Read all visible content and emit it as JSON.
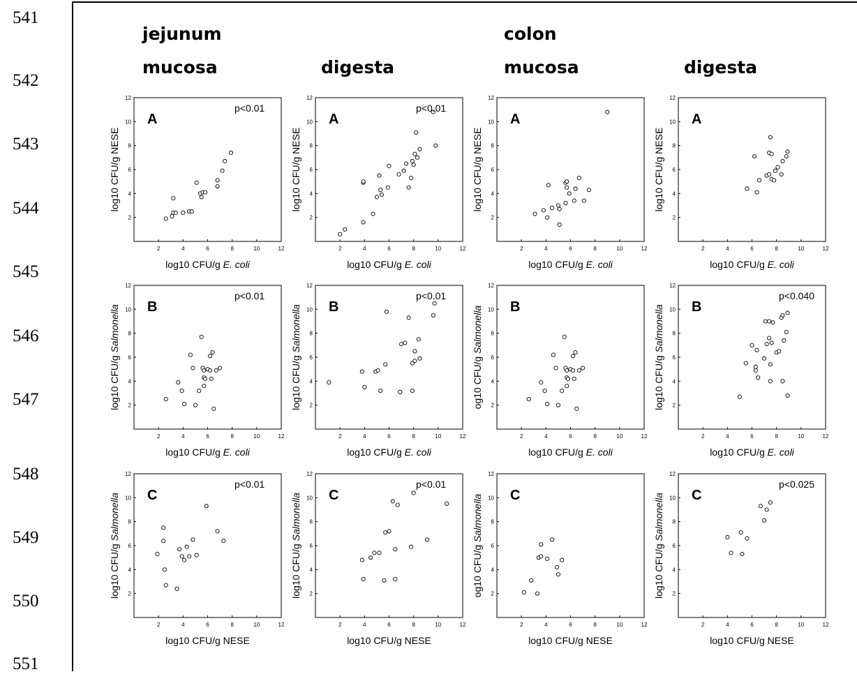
{
  "line_numbers": [
    "541",
    "542",
    "543",
    "544",
    "545",
    "546",
    "547",
    "548",
    "549",
    "550",
    "551"
  ],
  "headers": {
    "jejunum": "jejunum",
    "colon": "colon",
    "jej_mucosa": "mucosa",
    "jej_digesta": "digesta",
    "col_mucosa": "mucosa",
    "col_digesta": "digesta"
  },
  "chart_data": [
    {
      "type": "scatter",
      "panel": "jejunum mucosa",
      "letter": "A",
      "pvalue": "p<0.01",
      "xlabel": "log10 CFU/g",
      "xlabel_italic": "E. coli",
      "ylabel": "log10 CFU/g NESE",
      "ylabel_italic": "",
      "xlim": [
        0,
        12
      ],
      "ylim": [
        0,
        12
      ],
      "ticks": [
        2,
        4,
        6,
        8,
        10,
        12
      ],
      "points": [
        [
          2.6,
          1.9
        ],
        [
          3.1,
          2.1
        ],
        [
          3.2,
          2.4
        ],
        [
          3.4,
          2.4
        ],
        [
          3.2,
          3.6
        ],
        [
          4,
          2.4
        ],
        [
          4.5,
          2.5
        ],
        [
          4.7,
          2.5
        ],
        [
          5.1,
          4.9
        ],
        [
          5.4,
          4
        ],
        [
          5.5,
          3.7
        ],
        [
          5.6,
          4.1
        ],
        [
          5.8,
          4.1
        ],
        [
          6.8,
          4.6
        ],
        [
          6.8,
          5.1
        ],
        [
          7.2,
          5.9
        ],
        [
          7.4,
          6.7
        ],
        [
          7.9,
          7.4
        ]
      ]
    },
    {
      "type": "scatter",
      "panel": "jejunum digesta",
      "letter": "A",
      "pvalue": "p<0.01",
      "xlabel": "log10 CFU/g",
      "xlabel_italic": "E. coli",
      "ylabel": "log10 CFU/g NESE",
      "ylabel_italic": "",
      "xlim": [
        0,
        12
      ],
      "ylim": [
        0,
        12
      ],
      "ticks": [
        2,
        4,
        6,
        8,
        10,
        12
      ],
      "points": [
        [
          2,
          0.6
        ],
        [
          2.4,
          1
        ],
        [
          3.9,
          1.6
        ],
        [
          3.9,
          4.9
        ],
        [
          3.9,
          5
        ],
        [
          4.7,
          2.3
        ],
        [
          5,
          3.7
        ],
        [
          5.2,
          5.5
        ],
        [
          5.4,
          3.9
        ],
        [
          5.3,
          4.3
        ],
        [
          5.9,
          4.5
        ],
        [
          6,
          6.3
        ],
        [
          6.8,
          5.6
        ],
        [
          7.2,
          5.9
        ],
        [
          7.4,
          6.5
        ],
        [
          7.6,
          4.5
        ],
        [
          7.8,
          5.3
        ],
        [
          7.9,
          6.7
        ],
        [
          8,
          6.4
        ],
        [
          8.1,
          7.3
        ],
        [
          8.2,
          9.1
        ],
        [
          8.3,
          7
        ],
        [
          8.5,
          7.7
        ],
        [
          9.6,
          10.8
        ],
        [
          9.8,
          8
        ]
      ]
    },
    {
      "type": "scatter",
      "panel": "colon mucosa",
      "letter": "A",
      "pvalue": "",
      "xlabel": "log10 CFU/g",
      "xlabel_italic": "E. coli",
      "ylabel": "log10 CFU/g NESE",
      "ylabel_italic": "",
      "xlim": [
        0,
        12
      ],
      "ylim": [
        0,
        12
      ],
      "ticks": [
        2,
        4,
        6,
        8,
        10,
        12
      ],
      "points": [
        [
          3.1,
          2.3
        ],
        [
          3.8,
          2.6
        ],
        [
          4.1,
          2
        ],
        [
          4.2,
          4.7
        ],
        [
          4.5,
          2.8
        ],
        [
          5,
          3
        ],
        [
          5.1,
          1.4
        ],
        [
          5.1,
          2.7
        ],
        [
          5.6,
          4.9
        ],
        [
          5.7,
          4.5
        ],
        [
          5.6,
          3.2
        ],
        [
          5.9,
          4
        ],
        [
          5.7,
          5
        ],
        [
          6.3,
          3.4
        ],
        [
          6.4,
          4.4
        ],
        [
          6.7,
          5.3
        ],
        [
          7.1,
          3.4
        ],
        [
          7.5,
          4.3
        ],
        [
          9,
          10.8
        ]
      ]
    },
    {
      "type": "scatter",
      "panel": "colon digesta",
      "letter": "A",
      "pvalue": "",
      "xlabel": "log10 CFU/g",
      "xlabel_italic": "E. coli",
      "ylabel": "log10 CFU/g NESE",
      "ylabel_italic": "",
      "xlim": [
        0,
        12
      ],
      "ylim": [
        0,
        12
      ],
      "ticks": [
        2,
        4,
        6,
        8,
        10,
        12
      ],
      "points": [
        [
          5.6,
          4.4
        ],
        [
          6.2,
          7.1
        ],
        [
          6.4,
          4.1
        ],
        [
          6.6,
          5.1
        ],
        [
          7.2,
          5.5
        ],
        [
          7.4,
          5.6
        ],
        [
          7.4,
          7.4
        ],
        [
          7.5,
          8.7
        ],
        [
          7.6,
          7.3
        ],
        [
          7.6,
          5.2
        ],
        [
          7.8,
          5.1
        ],
        [
          7.9,
          5.9
        ],
        [
          8.1,
          6.2
        ],
        [
          8.4,
          5.6
        ],
        [
          8.5,
          6.7
        ],
        [
          8.8,
          7.1
        ],
        [
          8.9,
          7.5
        ]
      ]
    },
    {
      "type": "scatter",
      "panel": "jejunum mucosa",
      "letter": "B",
      "pvalue": "p<0.01",
      "xlabel": "log10 CFU/g",
      "xlabel_italic": "E. coli",
      "ylabel": "log10 CFU/g",
      "ylabel_italic": "Salmonella",
      "xlim": [
        0,
        12
      ],
      "ylim": [
        0,
        12
      ],
      "ticks": [
        2,
        4,
        6,
        8,
        10,
        12
      ],
      "points": [
        [
          2.6,
          2.5
        ],
        [
          3.6,
          3.9
        ],
        [
          3.9,
          3.2
        ],
        [
          4.1,
          2.1
        ],
        [
          4.6,
          6.2
        ],
        [
          4.8,
          5.1
        ],
        [
          5,
          2
        ],
        [
          5.3,
          3.2
        ],
        [
          5.5,
          7.7
        ],
        [
          5.6,
          5.1
        ],
        [
          5.7,
          4.9
        ],
        [
          5.7,
          4.3
        ],
        [
          5.7,
          3.6
        ],
        [
          5.8,
          4.2
        ],
        [
          6,
          5
        ],
        [
          6.2,
          6.1
        ],
        [
          6.2,
          4.9
        ],
        [
          6.4,
          6.4
        ],
        [
          6.3,
          4.2
        ],
        [
          6.5,
          1.7
        ],
        [
          6.7,
          4.9
        ],
        [
          7,
          5.1
        ]
      ]
    },
    {
      "type": "scatter",
      "panel": "jejunum digesta",
      "letter": "B",
      "pvalue": "p<0.01",
      "xlabel": "log10 CFU/g",
      "xlabel_italic": "E. coli",
      "ylabel": "log10 CFU/g",
      "ylabel_italic": "Salmonella",
      "xlim": [
        0,
        12
      ],
      "ylim": [
        0,
        12
      ],
      "ticks": [
        2,
        4,
        6,
        8,
        10,
        12
      ],
      "points": [
        [
          1.1,
          3.9
        ],
        [
          3.8,
          4.8
        ],
        [
          4,
          3.5
        ],
        [
          4.9,
          4.8
        ],
        [
          5.1,
          4.9
        ],
        [
          5.3,
          3.2
        ],
        [
          5.7,
          5.4
        ],
        [
          5.8,
          9.8
        ],
        [
          6.9,
          3.1
        ],
        [
          7,
          7.1
        ],
        [
          7.3,
          7.2
        ],
        [
          7.6,
          9.3
        ],
        [
          7.9,
          5.5
        ],
        [
          7.9,
          3.2
        ],
        [
          8.1,
          6.5
        ],
        [
          8.1,
          5.7
        ],
        [
          8.4,
          7.5
        ],
        [
          8.5,
          5.9
        ],
        [
          9.6,
          9.5
        ],
        [
          9.7,
          10.5
        ]
      ]
    },
    {
      "type": "scatter",
      "panel": "colon mucosa",
      "letter": "B",
      "pvalue": "",
      "xlabel": "log10 CFU/g",
      "xlabel_italic": "E. coli",
      "ylabel": "og10 CFU/g",
      "ylabel_italic": "Salmonella",
      "xlim": [
        0,
        12
      ],
      "ylim": [
        0,
        12
      ],
      "ticks": [
        2,
        4,
        6,
        8,
        10,
        12
      ],
      "points": [
        [
          2.6,
          2.5
        ],
        [
          3.6,
          3.9
        ],
        [
          3.9,
          3.2
        ],
        [
          4.1,
          2.1
        ],
        [
          4.6,
          6.2
        ],
        [
          4.8,
          5.1
        ],
        [
          5,
          2
        ],
        [
          5.3,
          3.2
        ],
        [
          5.5,
          7.7
        ],
        [
          5.6,
          5.1
        ],
        [
          5.7,
          4.9
        ],
        [
          5.7,
          4.3
        ],
        [
          5.7,
          3.6
        ],
        [
          5.8,
          4.2
        ],
        [
          6,
          5
        ],
        [
          6.2,
          6.1
        ],
        [
          6.2,
          4.9
        ],
        [
          6.4,
          6.4
        ],
        [
          6.3,
          4.2
        ],
        [
          6.5,
          1.7
        ],
        [
          6.7,
          4.9
        ],
        [
          7,
          5.1
        ]
      ]
    },
    {
      "type": "scatter",
      "panel": "colon digesta",
      "letter": "B",
      "pvalue": "p<0.040",
      "xlabel": "log10 CFU/g",
      "xlabel_italic": "E. coli",
      "ylabel": "log10 CFU/g",
      "ylabel_italic": "Salmonella",
      "xlim": [
        0,
        12
      ],
      "ylim": [
        0,
        12
      ],
      "ticks": [
        2,
        4,
        6,
        8,
        10,
        12
      ],
      "points": [
        [
          5,
          2.7
        ],
        [
          5.5,
          5.5
        ],
        [
          6,
          7
        ],
        [
          6.3,
          5.2
        ],
        [
          6.3,
          4.9
        ],
        [
          6.4,
          6.6
        ],
        [
          6.5,
          4.3
        ],
        [
          7,
          5.9
        ],
        [
          7.1,
          9
        ],
        [
          7.2,
          7.1
        ],
        [
          7.4,
          7.6
        ],
        [
          7.4,
          9
        ],
        [
          7.5,
          5.4
        ],
        [
          7.5,
          4
        ],
        [
          7.6,
          7.2
        ],
        [
          7.7,
          8.9
        ],
        [
          8,
          6.4
        ],
        [
          8.2,
          6.5
        ],
        [
          8.4,
          9.3
        ],
        [
          8.5,
          4
        ],
        [
          8.5,
          9.5
        ],
        [
          8.6,
          7.4
        ],
        [
          8.8,
          8.1
        ],
        [
          8.9,
          9.7
        ],
        [
          8.9,
          2.8
        ]
      ]
    },
    {
      "type": "scatter",
      "panel": "jejunum mucosa",
      "letter": "C",
      "pvalue": "p<0.01",
      "xlabel": "log10 CFU/g NESE",
      "xlabel_italic": "",
      "ylabel": "log10 CFU/g",
      "ylabel_italic": "Salmonella",
      "xlim": [
        0,
        12
      ],
      "ylim": [
        0,
        12
      ],
      "ticks": [
        2,
        4,
        6,
        8,
        10,
        12
      ],
      "points": [
        [
          1.9,
          5.3
        ],
        [
          2.4,
          7.5
        ],
        [
          2.4,
          6.4
        ],
        [
          2.5,
          4
        ],
        [
          2.6,
          2.7
        ],
        [
          3.5,
          2.4
        ],
        [
          3.7,
          5.7
        ],
        [
          3.9,
          5.1
        ],
        [
          4.1,
          4.8
        ],
        [
          4.3,
          5.9
        ],
        [
          4.5,
          5.1
        ],
        [
          4.8,
          6.5
        ],
        [
          5.1,
          5.2
        ],
        [
          5.9,
          9.3
        ],
        [
          6.8,
          7.2
        ],
        [
          7.3,
          6.4
        ]
      ]
    },
    {
      "type": "scatter",
      "panel": "jejunum digesta",
      "letter": "C",
      "pvalue": "p<0.01",
      "xlabel": "log10 CFU/g NESE",
      "xlabel_italic": "",
      "ylabel": "log10 CFU/g",
      "ylabel_italic": "Salmonella",
      "xlim": [
        0,
        12
      ],
      "ylim": [
        0,
        12
      ],
      "ticks": [
        2,
        4,
        6,
        8,
        10,
        12
      ],
      "points": [
        [
          3.8,
          4.8
        ],
        [
          3.9,
          3.2
        ],
        [
          4.5,
          5
        ],
        [
          4.8,
          5.4
        ],
        [
          5.2,
          5.4
        ],
        [
          5.6,
          3.1
        ],
        [
          5.7,
          7.1
        ],
        [
          6,
          7.2
        ],
        [
          6.3,
          9.7
        ],
        [
          6.5,
          5.7
        ],
        [
          6.5,
          3.2
        ],
        [
          6.7,
          9.4
        ],
        [
          7.8,
          5.9
        ],
        [
          8,
          10.4
        ],
        [
          9.1,
          6.5
        ],
        [
          10.7,
          9.5
        ]
      ]
    },
    {
      "type": "scatter",
      "panel": "colon mucosa",
      "letter": "C",
      "pvalue": "",
      "xlabel": "log10 CFU/g NESE",
      "xlabel_italic": "",
      "ylabel": "og10 CFU/g",
      "ylabel_italic": "Salmonella",
      "xlim": [
        0,
        12
      ],
      "ylim": [
        0,
        12
      ],
      "ticks": [
        2,
        4,
        6,
        8,
        10,
        12
      ],
      "points": [
        [
          2.2,
          2.1
        ],
        [
          2.8,
          3.1
        ],
        [
          3.3,
          2
        ],
        [
          3.4,
          5
        ],
        [
          3.6,
          5.1
        ],
        [
          3.6,
          6.1
        ],
        [
          4.1,
          4.9
        ],
        [
          4.5,
          6.5
        ],
        [
          4.9,
          4.2
        ],
        [
          5,
          3.6
        ],
        [
          5.3,
          4.8
        ]
      ]
    },
    {
      "type": "scatter",
      "panel": "colon digesta",
      "letter": "C",
      "pvalue": "p<0.025",
      "xlabel": "log10 CFU/g NESE",
      "xlabel_italic": "",
      "ylabel": "log10 CFU/g",
      "ylabel_italic": "Salmonella",
      "xlim": [
        0,
        12
      ],
      "ylim": [
        0,
        12
      ],
      "ticks": [
        2,
        4,
        6,
        8,
        10,
        12
      ],
      "points": [
        [
          4,
          6.7
        ],
        [
          4.3,
          5.4
        ],
        [
          5.1,
          7.1
        ],
        [
          5.2,
          5.3
        ],
        [
          5.6,
          6.6
        ],
        [
          6.7,
          9.3
        ],
        [
          7,
          8.1
        ],
        [
          7.2,
          9
        ],
        [
          7.5,
          9.6
        ]
      ]
    }
  ]
}
